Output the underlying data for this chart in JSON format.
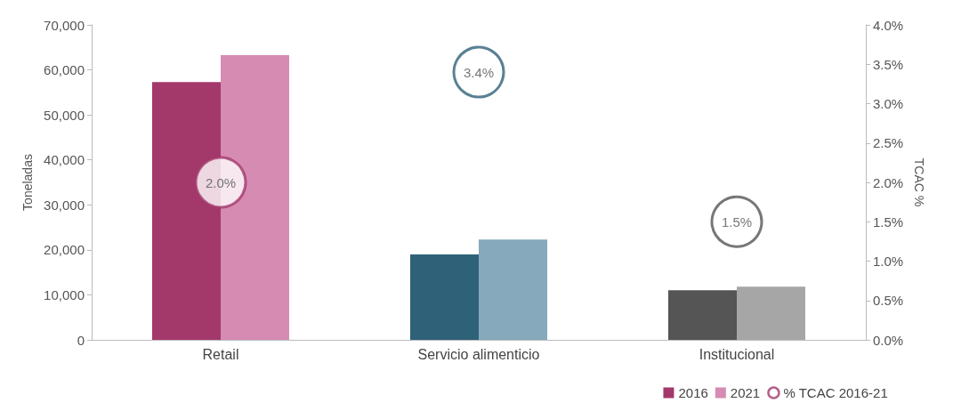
{
  "chart_data": {
    "type": "bar",
    "ylabel": "Toneladas",
    "y2label": "TCAC %",
    "categories": [
      "Retail",
      "Servicio alimenticio",
      "Institucional"
    ],
    "series": [
      {
        "name": "2016",
        "color": "#a3386b",
        "colors": [
          "#a3386b",
          "#2f6278",
          "#555555"
        ],
        "values": [
          57300,
          19000,
          11000
        ]
      },
      {
        "name": "2021",
        "color": "#d68bb3",
        "colors": [
          "#d68bb3",
          "#86a9bc",
          "#a6a6a6"
        ],
        "values": [
          63300,
          22300,
          11800
        ]
      },
      {
        "name": "% TCAC 2016-21",
        "type": "scatter",
        "axis": "y2",
        "marker": "circle",
        "color": "#a3386b",
        "colors": [
          "#a3386b",
          "#2f6278",
          "#555555"
        ],
        "values": [
          2.0,
          3.4,
          1.5
        ],
        "value_labels": [
          "2.0%",
          "3.4%",
          "1.5%"
        ]
      }
    ],
    "ylim": [
      0,
      70000
    ],
    "yticks": [
      {
        "value": 0,
        "label": "0"
      },
      {
        "value": 10000,
        "label": "10,000"
      },
      {
        "value": 20000,
        "label": "20,000"
      },
      {
        "value": 30000,
        "label": "30,000"
      },
      {
        "value": 40000,
        "label": "40,000"
      },
      {
        "value": 50000,
        "label": "50,000"
      },
      {
        "value": 60000,
        "label": "60,000"
      },
      {
        "value": 70000,
        "label": "70,000"
      }
    ],
    "y2lim": [
      0,
      4
    ],
    "y2ticks": [
      {
        "value": 0,
        "label": "0.0%"
      },
      {
        "value": 0.5,
        "label": "0.5%"
      },
      {
        "value": 1,
        "label": "1.0%"
      },
      {
        "value": 1.5,
        "label": "1.5%"
      },
      {
        "value": 2,
        "label": "2.0%"
      },
      {
        "value": 2.5,
        "label": "2.5%"
      },
      {
        "value": 3,
        "label": "3.0%"
      },
      {
        "value": 3.5,
        "label": "3.5%"
      },
      {
        "value": 4,
        "label": "4.0%"
      }
    ],
    "grid": false,
    "legend": "bottom right"
  }
}
